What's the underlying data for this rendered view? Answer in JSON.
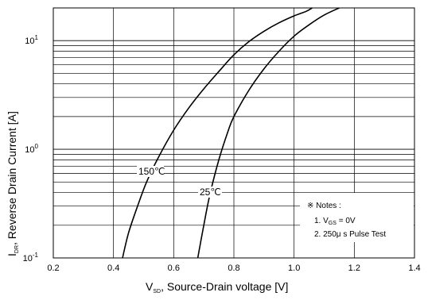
{
  "chart_data": {
    "type": "line",
    "title": "",
    "xlabel": {
      "main": "V",
      "sub": "SD",
      "rest": ", Source-Drain voltage [V]"
    },
    "ylabel": {
      "main": "I",
      "sub": "DR",
      "rest": ", Reverse Drain Current [A]"
    },
    "xlim": [
      0.2,
      1.4
    ],
    "ylim": [
      0.1,
      20
    ],
    "y_scale": "log",
    "grid": true,
    "x_ticks": [
      "0.2",
      "0.4",
      "0.6",
      "0.8",
      "1.0",
      "1.2",
      "1.4"
    ],
    "x_tick_values": [
      0.2,
      0.4,
      0.6,
      0.8,
      1.0,
      1.2,
      1.4
    ],
    "y_ticks": [
      {
        "value": 0.1,
        "base": "10",
        "exp": "-1"
      },
      {
        "value": 1,
        "base": "10",
        "exp": "0"
      },
      {
        "value": 10,
        "base": "10",
        "exp": "1"
      }
    ],
    "series": [
      {
        "name": "150℃",
        "color": "#000000",
        "x": [
          0.43,
          0.45,
          0.48,
          0.51,
          0.55,
          0.6,
          0.65,
          0.7,
          0.75,
          0.8,
          0.85,
          0.9,
          0.95,
          1.0,
          1.04,
          1.06
        ],
        "y": [
          0.1,
          0.17,
          0.3,
          0.5,
          0.85,
          1.5,
          2.4,
          3.6,
          5.2,
          7.4,
          9.8,
          12.2,
          14.6,
          16.9,
          18.6,
          20
        ]
      },
      {
        "name": "25℃",
        "color": "#000000",
        "x": [
          0.68,
          0.7,
          0.72,
          0.75,
          0.78,
          0.8,
          0.85,
          0.9,
          0.95,
          1.0,
          1.05,
          1.1,
          1.15
        ],
        "y": [
          0.1,
          0.2,
          0.38,
          0.8,
          1.45,
          2.0,
          3.5,
          5.5,
          8.0,
          11.0,
          14.0,
          17.2,
          20
        ]
      }
    ],
    "annotations": {
      "notes_title": "※ Notes :",
      "note1": {
        "prefix": "1. V",
        "sub": "GS",
        "suffix": " = 0V"
      },
      "note2": "2. 250μ s Pulse Test"
    }
  }
}
